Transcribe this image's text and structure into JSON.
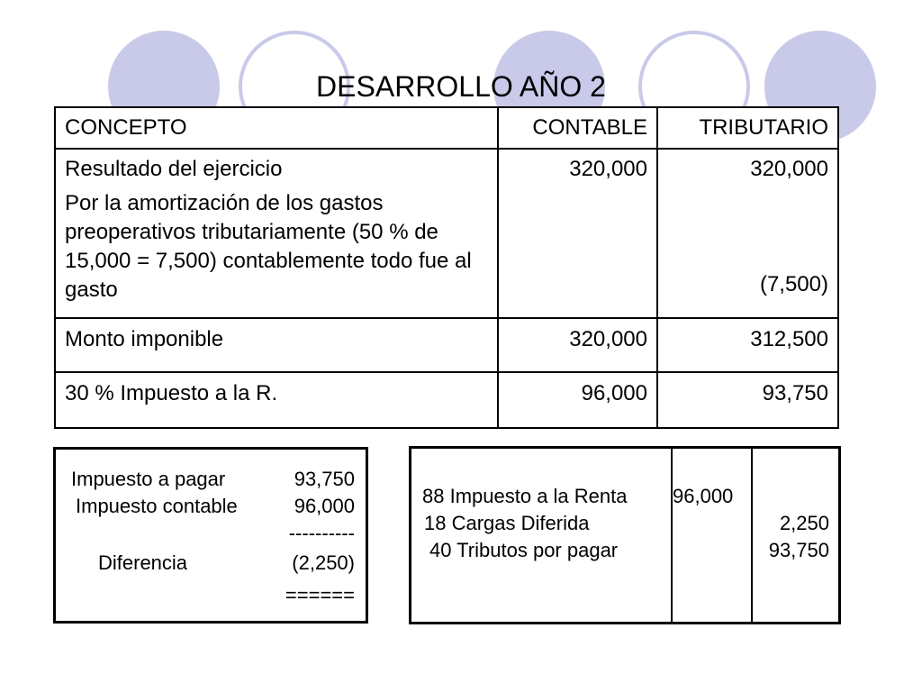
{
  "title": "DESARROLLO AÑO 2",
  "table": {
    "headers": {
      "concepto": "CONCEPTO",
      "contable": "CONTABLE",
      "tributario": "TRIBUTARIO"
    },
    "rows": [
      {
        "concepto_line1": "Resultado del ejercicio",
        "concepto_line2": "Por la amortización de los gastos preoperativos tributariamente (50 % de 15,000 = 7,500) contablemente todo fue al gasto",
        "contable": "320,000",
        "tributario_line1": "320,000",
        "tributario_line2": "(7,500)"
      },
      {
        "concepto": "Monto imponible",
        "contable": "320,000",
        "tributario": "312,500"
      },
      {
        "concepto": "30 % Impuesto a la R.",
        "contable": "96,000",
        "tributario": "93,750"
      }
    ]
  },
  "calc": {
    "impuesto_pagar_label": "Impuesto a pagar",
    "impuesto_pagar_value": "93,750",
    "impuesto_contable_label": "Impuesto contable",
    "impuesto_contable_value": "96,000",
    "separator": "----------",
    "diferencia_label": "Diferencia",
    "diferencia_value": "(2,250)",
    "double_rule": "======"
  },
  "journal": {
    "entry1_account": "88 Impuesto a la Renta",
    "entry1_debit": "96,000",
    "entry2_account": "18 Cargas Diferida",
    "entry2_credit": "2,250",
    "entry3_account": "40 Tributos por pagar",
    "entry3_credit": "93,750"
  }
}
